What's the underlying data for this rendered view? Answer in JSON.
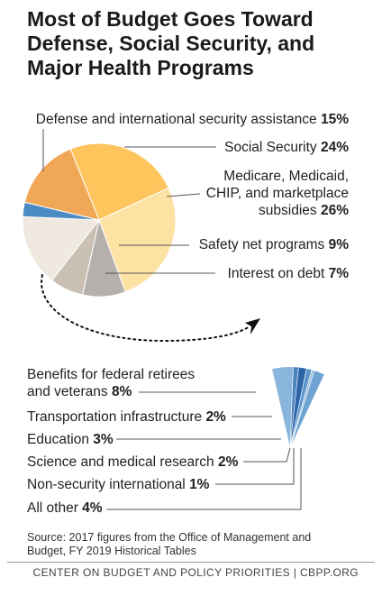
{
  "title": "Most of Budget Goes Toward Defense, Social Security, and Major Health Programs",
  "source": "Source: 2017 figures from the Office of Management and Budget, FY 2019 Historical Tables",
  "footer": "CENTER ON BUDGET AND POLICY PRIORITIES | CBPP.ORG",
  "chart_data": [
    {
      "type": "pie",
      "title": "Most of Budget Goes Toward Defense, Social Security, and Major Health Programs",
      "slices": [
        {
          "label": "Social Security",
          "display_value": "24%",
          "value": 24,
          "color": "#FDC55C"
        },
        {
          "label": "Medicare, Medicaid, CHIP, and marketplace subsidies",
          "label_lines": [
            "Medicare, Medicaid,",
            "CHIP, and marketplace",
            "subsidies"
          ],
          "display_value": "26%",
          "value": 26,
          "color": "#FEE2A3"
        },
        {
          "label": "Safety net programs",
          "display_value": "9%",
          "value": 9,
          "color": "#B5B0AB"
        },
        {
          "label": "Interest on debt",
          "display_value": "7%",
          "value": 7,
          "color": "#C9BFB2"
        },
        {
          "label": "All other",
          "display_value": "",
          "value": 15,
          "color": "#EFE9DF",
          "exploded_into_detail": true
        },
        {
          "label": "",
          "display_value": "",
          "value": 3,
          "color": "#4C8AC3",
          "exploded_into_detail": true
        },
        {
          "label": "Defense and international security assistance",
          "display_value": "15%",
          "value": 15,
          "color": "#F0A857"
        }
      ]
    },
    {
      "type": "pie",
      "subtype": "exploded detail of the remaining portion",
      "slices": [
        {
          "label": "Benefits for federal retirees and veterans",
          "label_lines": [
            "Benefits for federal retirees",
            "and veterans"
          ],
          "display_value": "8%",
          "value": 8,
          "color": "#8AB5DC"
        },
        {
          "label": "Transportation infrastructure",
          "display_value": "2%",
          "value": 2,
          "color": "#4A84BF"
        },
        {
          "label": "Education",
          "display_value": "3%",
          "value": 3,
          "color": "#2E65A8"
        },
        {
          "label": "Science and medical research",
          "display_value": "2%",
          "value": 2,
          "color": "#5C96CC"
        },
        {
          "label": "Non-security international",
          "display_value": "1%",
          "value": 1,
          "color": "#9AC1E2"
        },
        {
          "label": "All other",
          "display_value": "4%",
          "value": 4,
          "color": "#6FA3D4"
        }
      ]
    }
  ]
}
